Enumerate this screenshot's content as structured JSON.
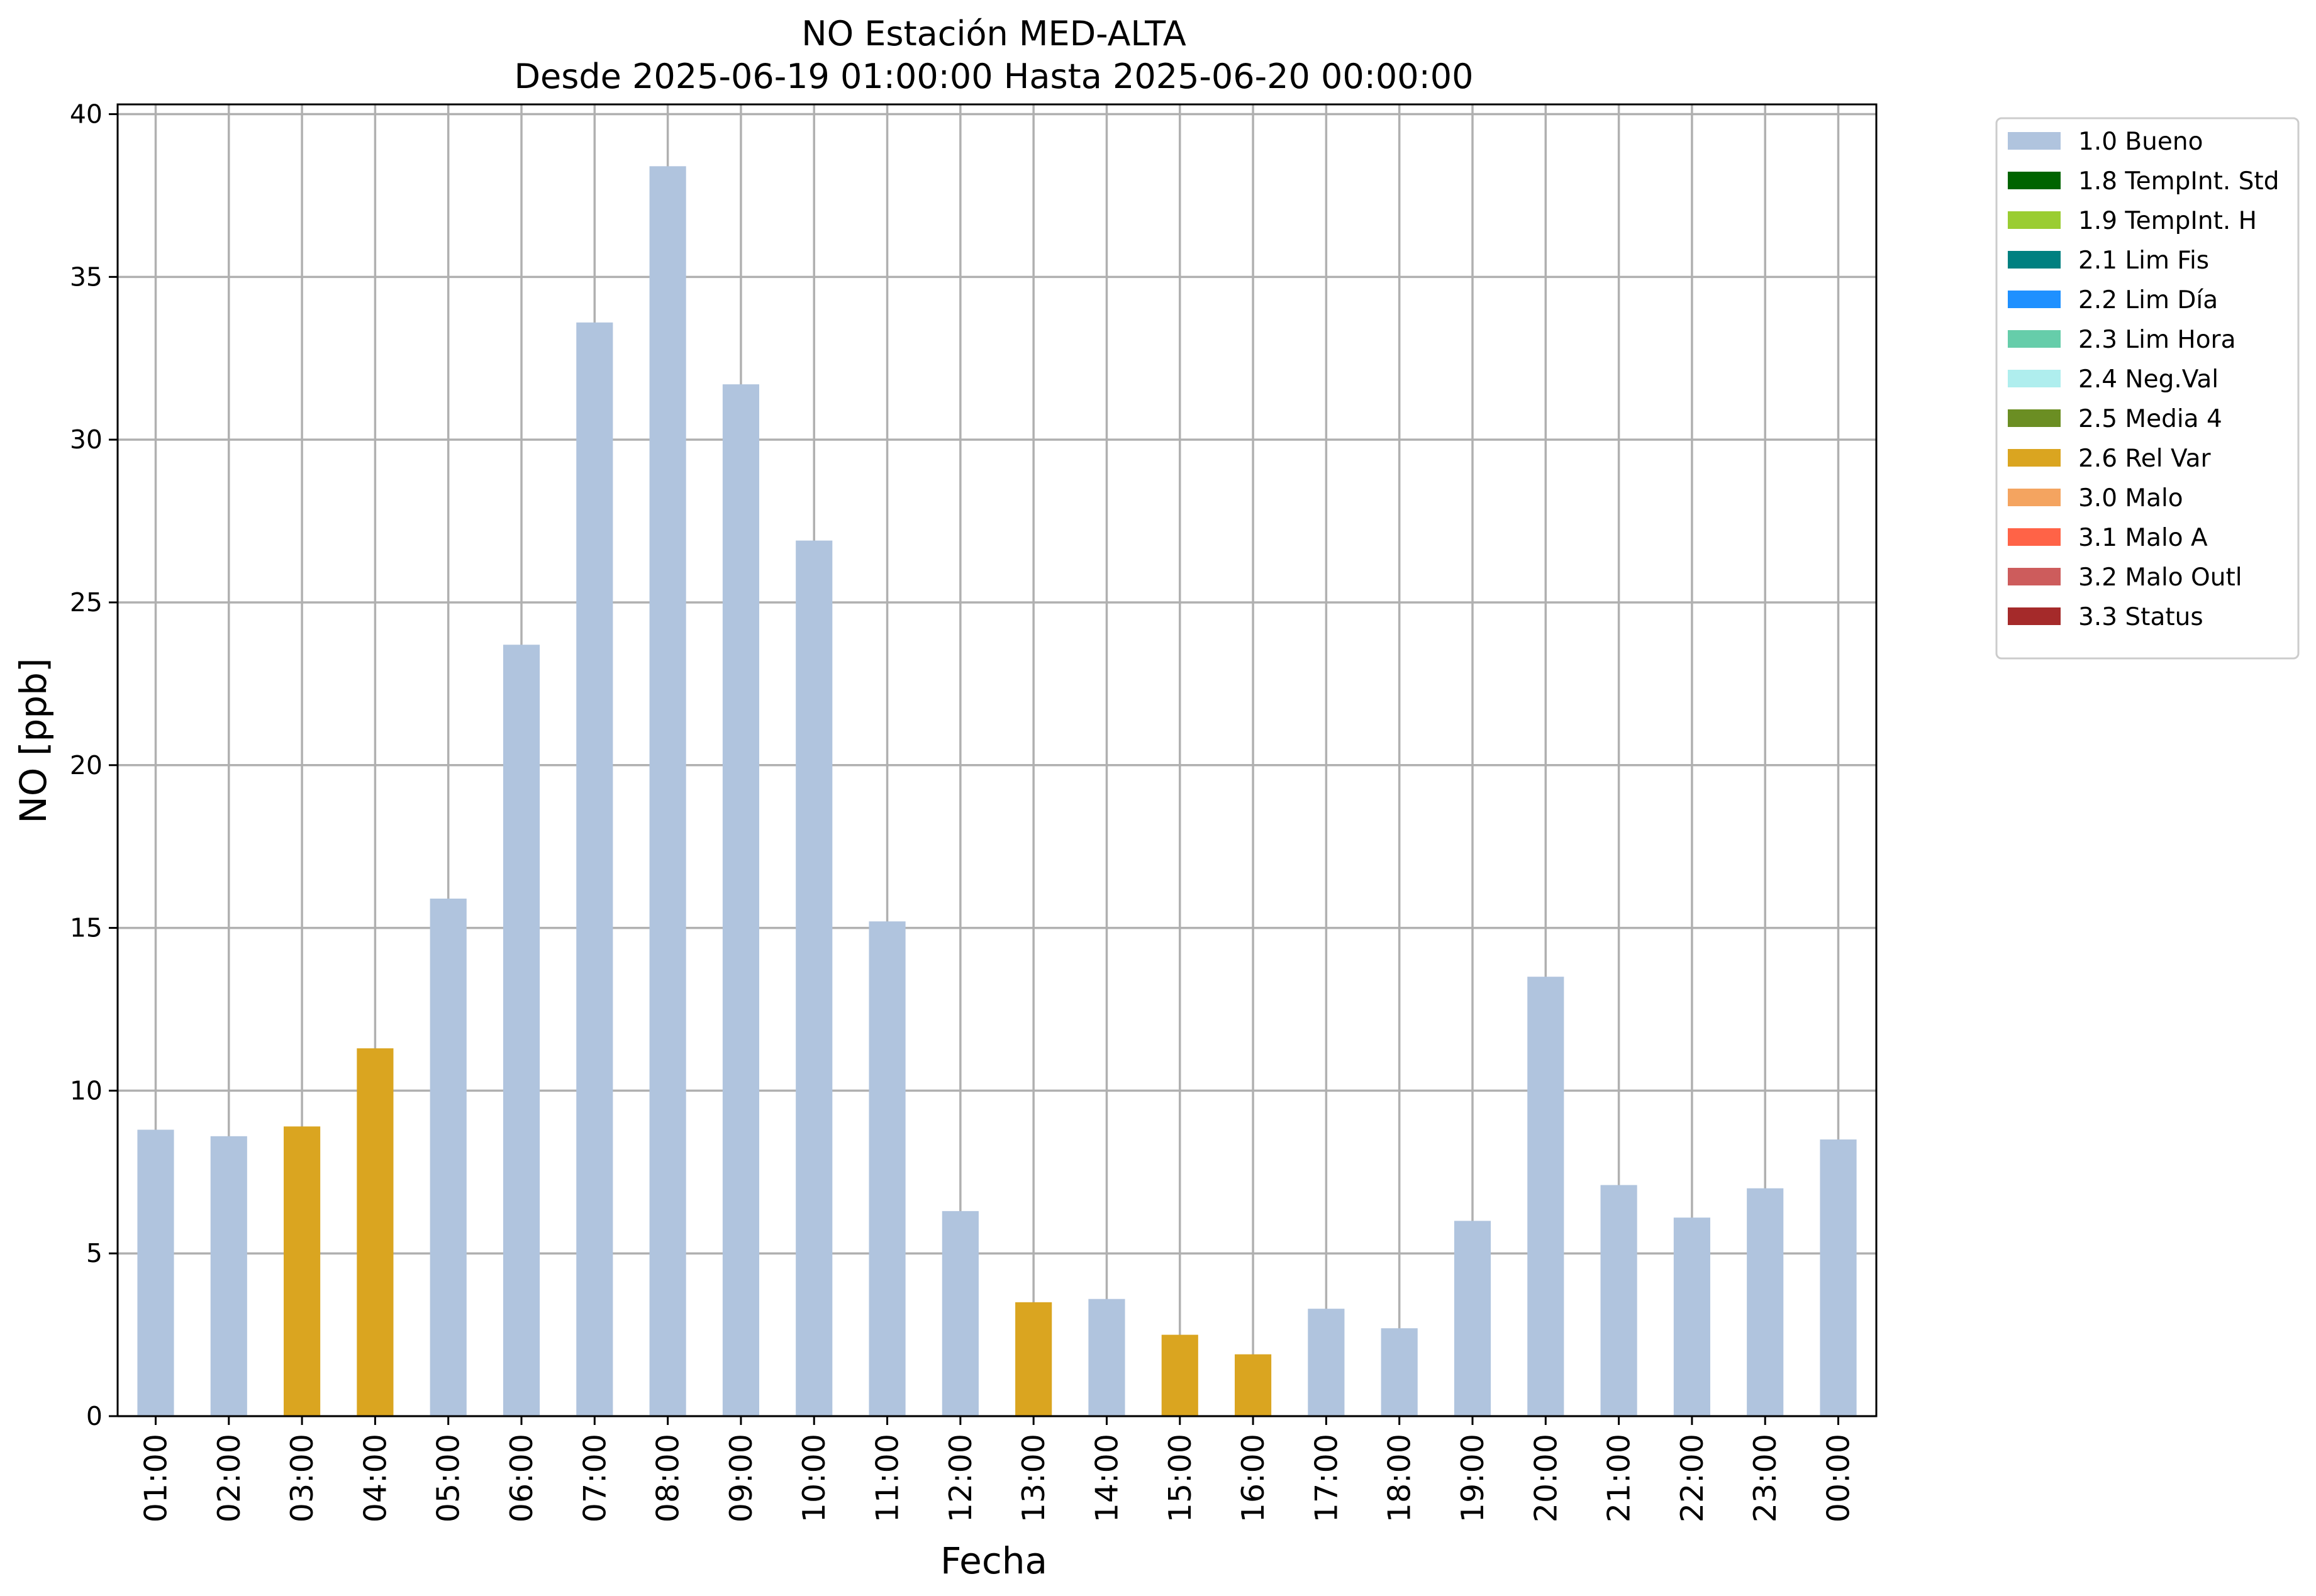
{
  "chart_data": {
    "type": "bar",
    "title": "NO Estación MED-ALTA",
    "subtitle": "Desde 2025-06-19 01:00:00 Hasta 2025-06-20 00:00:00",
    "xlabel": "Fecha",
    "ylabel": "NO [ppb]",
    "ylim": [
      0,
      40.3
    ],
    "yticks": [
      0,
      5,
      10,
      15,
      20,
      25,
      30,
      35,
      40
    ],
    "grid": true,
    "legend_position": "outside-top-right",
    "categories": [
      "01:00",
      "02:00",
      "03:00",
      "04:00",
      "05:00",
      "06:00",
      "07:00",
      "08:00",
      "09:00",
      "10:00",
      "11:00",
      "12:00",
      "13:00",
      "14:00",
      "15:00",
      "16:00",
      "17:00",
      "18:00",
      "19:00",
      "20:00",
      "21:00",
      "22:00",
      "23:00",
      "00:00"
    ],
    "values": [
      8.8,
      8.6,
      8.9,
      11.3,
      15.9,
      23.7,
      33.6,
      38.4,
      31.7,
      26.9,
      15.2,
      6.3,
      3.5,
      3.6,
      2.5,
      1.9,
      3.3,
      2.7,
      6.0,
      13.5,
      7.1,
      6.1,
      7.0,
      8.5
    ],
    "flags": [
      "1.0 Bueno",
      "1.0 Bueno",
      "2.6 Rel Var",
      "2.6 Rel Var",
      "1.0 Bueno",
      "1.0 Bueno",
      "1.0 Bueno",
      "1.0 Bueno",
      "1.0 Bueno",
      "1.0 Bueno",
      "1.0 Bueno",
      "1.0 Bueno",
      "2.6 Rel Var",
      "1.0 Bueno",
      "2.6 Rel Var",
      "2.6 Rel Var",
      "1.0 Bueno",
      "1.0 Bueno",
      "1.0 Bueno",
      "1.0 Bueno",
      "1.0 Bueno",
      "1.0 Bueno",
      "1.0 Bueno",
      "1.0 Bueno"
    ],
    "legend": [
      {
        "label": "1.0 Bueno",
        "color": "#b0c4de"
      },
      {
        "label": "1.8 TempInt. Std",
        "color": "#006400"
      },
      {
        "label": "1.9 TempInt. H",
        "color": "#9acd32"
      },
      {
        "label": "2.1 Lim Fis",
        "color": "#008080"
      },
      {
        "label": "2.2 Lim Día",
        "color": "#1e90ff"
      },
      {
        "label": "2.3 Lim Hora",
        "color": "#66cdaa"
      },
      {
        "label": "2.4 Neg.Val",
        "color": "#afeeee"
      },
      {
        "label": "2.5 Media 4",
        "color": "#6b8e23"
      },
      {
        "label": "2.6 Rel Var",
        "color": "#daa520"
      },
      {
        "label": "3.0 Malo",
        "color": "#f4a460"
      },
      {
        "label": "3.1 Malo A",
        "color": "#ff6347"
      },
      {
        "label": "3.2 Malo Outl",
        "color": "#cd5c5c"
      },
      {
        "label": "3.3 Status",
        "color": "#a52a2a"
      }
    ]
  }
}
